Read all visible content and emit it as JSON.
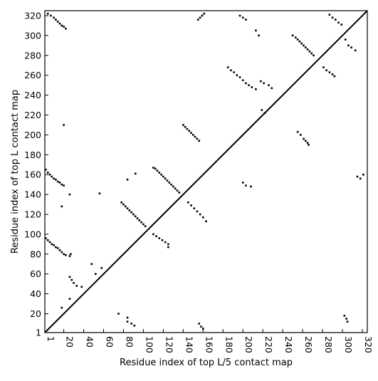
{
  "chart_data": {
    "type": "scatter",
    "title": "",
    "xlabel": "Residue index of top L/5 contact map",
    "ylabel": "Residue index of top L contact map",
    "xlim": [
      1,
      325
    ],
    "ylim": [
      1,
      325
    ],
    "x_ticks": [
      1,
      20,
      40,
      60,
      80,
      100,
      120,
      140,
      160,
      180,
      200,
      220,
      240,
      260,
      280,
      300,
      320
    ],
    "y_ticks": [
      1,
      20,
      40,
      60,
      80,
      100,
      120,
      140,
      160,
      180,
      200,
      220,
      240,
      260,
      280,
      300,
      320
    ],
    "diagonal": true,
    "grid": false,
    "marker_color": "#000000",
    "upper_triangle_contacts": [
      [
        4,
        322
      ],
      [
        7,
        320
      ],
      [
        10,
        318
      ],
      [
        12,
        316
      ],
      [
        14,
        314
      ],
      [
        16,
        312
      ],
      [
        18,
        310
      ],
      [
        20,
        309
      ],
      [
        22,
        307
      ],
      [
        155,
        316
      ],
      [
        157,
        318
      ],
      [
        159,
        320
      ],
      [
        161,
        322
      ],
      [
        197,
        320
      ],
      [
        200,
        318
      ],
      [
        203,
        316
      ],
      [
        213,
        305
      ],
      [
        216,
        300
      ],
      [
        250,
        300
      ],
      [
        253,
        298
      ],
      [
        255,
        296
      ],
      [
        257,
        294
      ],
      [
        259,
        292
      ],
      [
        261,
        290
      ],
      [
        263,
        288
      ],
      [
        265,
        286
      ],
      [
        267,
        284
      ],
      [
        269,
        282
      ],
      [
        271,
        280
      ],
      [
        287,
        321
      ],
      [
        290,
        318
      ],
      [
        293,
        316
      ],
      [
        296,
        313
      ],
      [
        299,
        311
      ],
      [
        303,
        296
      ],
      [
        306,
        290
      ],
      [
        309,
        288
      ],
      [
        313,
        285
      ],
      [
        185,
        268
      ],
      [
        188,
        265
      ],
      [
        191,
        263
      ],
      [
        194,
        260
      ],
      [
        197,
        258
      ],
      [
        200,
        255
      ],
      [
        203,
        252
      ],
      [
        206,
        250
      ],
      [
        209,
        248
      ],
      [
        213,
        246
      ],
      [
        218,
        254
      ],
      [
        221,
        252
      ],
      [
        226,
        250
      ],
      [
        229,
        247
      ],
      [
        281,
        268
      ],
      [
        284,
        265
      ],
      [
        287,
        263
      ],
      [
        290,
        261
      ],
      [
        292,
        259
      ],
      [
        255,
        203
      ],
      [
        258,
        200
      ],
      [
        261,
        196
      ],
      [
        263,
        194
      ],
      [
        265,
        192
      ],
      [
        266,
        190
      ]
    ],
    "lower_triangle_contacts": [
      [
        2,
        165
      ],
      [
        4,
        162
      ],
      [
        6,
        160
      ],
      [
        8,
        158
      ],
      [
        10,
        156
      ],
      [
        12,
        155
      ],
      [
        14,
        153
      ],
      [
        16,
        152
      ],
      [
        18,
        150
      ],
      [
        20,
        149
      ],
      [
        26,
        140
      ],
      [
        56,
        141
      ],
      [
        2,
        96
      ],
      [
        4,
        94
      ],
      [
        6,
        92
      ],
      [
        8,
        90
      ],
      [
        10,
        89
      ],
      [
        12,
        87
      ],
      [
        14,
        86
      ],
      [
        16,
        84
      ],
      [
        18,
        82
      ],
      [
        20,
        80
      ],
      [
        22,
        79
      ],
      [
        26,
        78
      ],
      [
        27,
        80
      ],
      [
        18,
        128
      ],
      [
        20,
        210
      ],
      [
        110,
        167
      ],
      [
        112,
        166
      ],
      [
        114,
        164
      ],
      [
        116,
        162
      ],
      [
        118,
        160
      ],
      [
        120,
        158
      ],
      [
        122,
        156
      ],
      [
        124,
        154
      ],
      [
        126,
        152
      ],
      [
        128,
        150
      ],
      [
        130,
        148
      ],
      [
        132,
        146
      ],
      [
        134,
        144
      ],
      [
        136,
        142
      ],
      [
        78,
        132
      ],
      [
        80,
        130
      ],
      [
        82,
        128
      ],
      [
        84,
        126
      ],
      [
        86,
        124
      ],
      [
        88,
        122
      ],
      [
        90,
        120
      ],
      [
        92,
        118
      ],
      [
        94,
        116
      ],
      [
        96,
        114
      ],
      [
        98,
        112
      ],
      [
        100,
        110
      ],
      [
        102,
        108
      ],
      [
        84,
        155
      ],
      [
        92,
        161
      ],
      [
        110,
        100
      ],
      [
        113,
        98
      ],
      [
        116,
        96
      ],
      [
        119,
        94
      ],
      [
        122,
        92
      ],
      [
        125,
        90
      ],
      [
        125,
        87
      ],
      [
        140,
        210
      ],
      [
        142,
        208
      ],
      [
        144,
        206
      ],
      [
        146,
        204
      ],
      [
        148,
        202
      ],
      [
        150,
        200
      ],
      [
        152,
        198
      ],
      [
        154,
        196
      ],
      [
        156,
        194
      ],
      [
        145,
        132
      ],
      [
        148,
        129
      ],
      [
        151,
        126
      ],
      [
        154,
        123
      ],
      [
        157,
        120
      ],
      [
        160,
        117
      ],
      [
        163,
        113
      ],
      [
        200,
        152
      ],
      [
        203,
        149
      ],
      [
        208,
        148
      ],
      [
        26,
        57
      ],
      [
        28,
        54
      ],
      [
        30,
        51
      ],
      [
        33,
        48
      ],
      [
        38,
        47
      ],
      [
        26,
        35
      ],
      [
        18,
        26
      ],
      [
        48,
        70
      ],
      [
        52,
        60
      ],
      [
        58,
        66
      ],
      [
        75,
        20
      ],
      [
        84,
        16
      ],
      [
        84,
        12
      ],
      [
        88,
        10
      ],
      [
        91,
        8
      ],
      [
        156,
        10
      ],
      [
        158,
        7
      ],
      [
        160,
        5
      ],
      [
        219,
        225
      ],
      [
        222,
        222
      ],
      [
        302,
        18
      ],
      [
        304,
        15
      ],
      [
        305,
        12
      ],
      [
        315,
        158
      ],
      [
        318,
        156
      ],
      [
        321,
        160
      ]
    ]
  }
}
